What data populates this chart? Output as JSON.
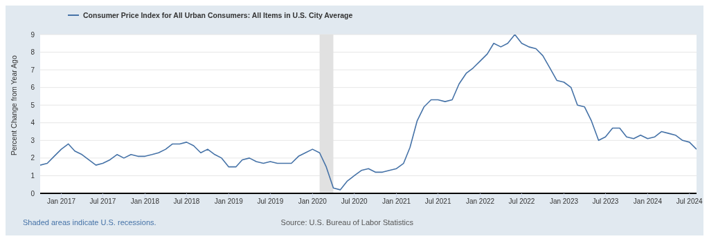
{
  "chart_data": {
    "type": "line",
    "ylabel": "Percent Change from Year Ago",
    "x": [
      "2016-10",
      "2016-11",
      "2016-12",
      "2017-01",
      "2017-02",
      "2017-03",
      "2017-04",
      "2017-05",
      "2017-06",
      "2017-07",
      "2017-08",
      "2017-09",
      "2017-10",
      "2017-11",
      "2017-12",
      "2018-01",
      "2018-02",
      "2018-03",
      "2018-04",
      "2018-05",
      "2018-06",
      "2018-07",
      "2018-08",
      "2018-09",
      "2018-10",
      "2018-11",
      "2018-12",
      "2019-01",
      "2019-02",
      "2019-03",
      "2019-04",
      "2019-05",
      "2019-06",
      "2019-07",
      "2019-08",
      "2019-09",
      "2019-10",
      "2019-11",
      "2019-12",
      "2020-01",
      "2020-02",
      "2020-03",
      "2020-04",
      "2020-05",
      "2020-06",
      "2020-07",
      "2020-08",
      "2020-09",
      "2020-10",
      "2020-11",
      "2020-12",
      "2021-01",
      "2021-02",
      "2021-03",
      "2021-04",
      "2021-05",
      "2021-06",
      "2021-07",
      "2021-08",
      "2021-09",
      "2021-10",
      "2021-11",
      "2021-12",
      "2022-01",
      "2022-02",
      "2022-03",
      "2022-04",
      "2022-05",
      "2022-06",
      "2022-07",
      "2022-08",
      "2022-09",
      "2022-10",
      "2022-11",
      "2022-12",
      "2023-01",
      "2023-02",
      "2023-03",
      "2023-04",
      "2023-05",
      "2023-06",
      "2023-07",
      "2023-08",
      "2023-09",
      "2023-10",
      "2023-11",
      "2023-12",
      "2024-01",
      "2024-02",
      "2024-03",
      "2024-04",
      "2024-05",
      "2024-06",
      "2024-07",
      "2024-08"
    ],
    "series": [
      {
        "name": "Consumer Price Index for All Urban Consumers: All Items in U.S. City Average",
        "color": "#4572a7",
        "values": [
          1.6,
          1.7,
          2.1,
          2.5,
          2.8,
          2.4,
          2.2,
          1.9,
          1.6,
          1.7,
          1.9,
          2.2,
          2.0,
          2.2,
          2.1,
          2.1,
          2.2,
          2.3,
          2.5,
          2.8,
          2.8,
          2.9,
          2.7,
          2.3,
          2.5,
          2.2,
          2.0,
          1.5,
          1.5,
          1.9,
          2.0,
          1.8,
          1.7,
          1.8,
          1.7,
          1.7,
          1.7,
          2.1,
          2.3,
          2.5,
          2.3,
          1.5,
          0.3,
          0.2,
          0.7,
          1.0,
          1.3,
          1.4,
          1.2,
          1.2,
          1.3,
          1.4,
          1.7,
          2.6,
          4.1,
          4.9,
          5.3,
          5.3,
          5.2,
          5.3,
          6.2,
          6.8,
          7.1,
          7.5,
          7.9,
          8.5,
          8.3,
          8.5,
          9.0,
          8.5,
          8.3,
          8.2,
          7.8,
          7.1,
          6.4,
          6.3,
          6.0,
          5.0,
          4.9,
          4.1,
          3.0,
          3.2,
          3.7,
          3.7,
          3.2,
          3.1,
          3.3,
          3.1,
          3.2,
          3.5,
          3.4,
          3.3,
          3.0,
          2.9,
          2.5
        ]
      }
    ],
    "xlim": [
      "2016-10",
      "2024-08"
    ],
    "xticks": [
      {
        "value": "2017-01",
        "label": "Jan 2017"
      },
      {
        "value": "2017-07",
        "label": "Jul 2017"
      },
      {
        "value": "2018-01",
        "label": "Jan 2018"
      },
      {
        "value": "2018-07",
        "label": "Jul 2018"
      },
      {
        "value": "2019-01",
        "label": "Jan 2019"
      },
      {
        "value": "2019-07",
        "label": "Jul 2019"
      },
      {
        "value": "2020-01",
        "label": "Jan 2020"
      },
      {
        "value": "2020-07",
        "label": "Jul 2020"
      },
      {
        "value": "2021-01",
        "label": "Jan 2021"
      },
      {
        "value": "2021-07",
        "label": "Jul 2021"
      },
      {
        "value": "2022-01",
        "label": "Jan 2022"
      },
      {
        "value": "2022-07",
        "label": "Jul 2022"
      },
      {
        "value": "2023-01",
        "label": "Jan 2023"
      },
      {
        "value": "2023-07",
        "label": "Jul 2023"
      },
      {
        "value": "2024-01",
        "label": "Jan 2024"
      },
      {
        "value": "2024-07",
        "label": "Jul 2024"
      }
    ],
    "ylim": [
      0,
      9
    ],
    "yticks": [
      0,
      1,
      2,
      3,
      4,
      5,
      6,
      7,
      8,
      9
    ],
    "bands": [
      {
        "axis": "x",
        "from": "2020-02",
        "to": "2020-04",
        "color": "#e1e1e1"
      }
    ],
    "grid": "y",
    "legend": "top left",
    "marker": "none",
    "line_style": "solid",
    "annotations": [
      "Shaded areas indicate U.S. recessions.",
      "Source: U.S. Bureau of Labor Statistics"
    ]
  }
}
